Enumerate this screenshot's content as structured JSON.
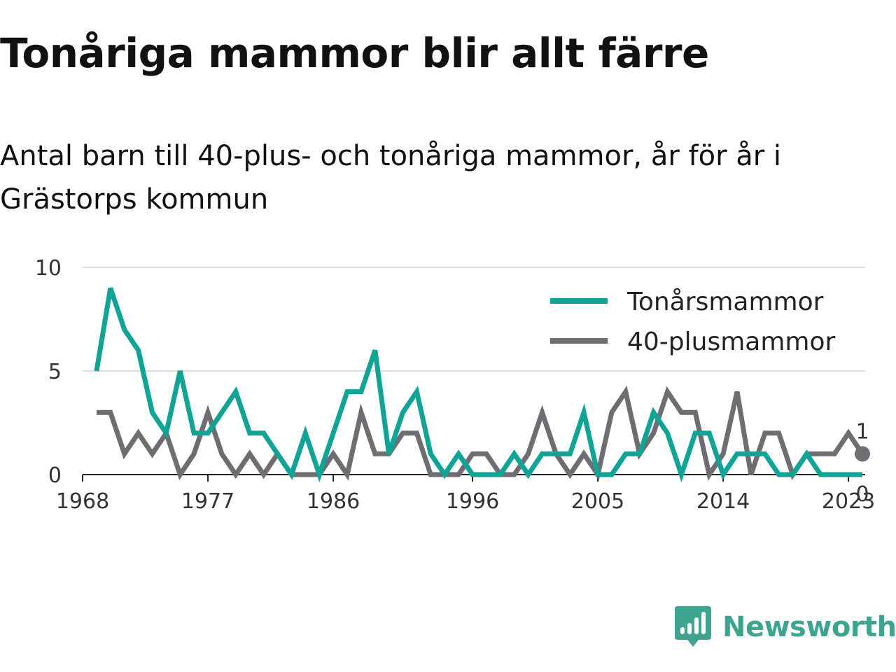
{
  "title": "Tonåriga mammor blir allt färre",
  "subtitle": "Antal barn till 40-plus- och tonåriga mammor, år för år i Grästorps kommun",
  "brand": {
    "name": "Newsworthy",
    "color": "#3fa48f"
  },
  "chart_data": {
    "type": "line",
    "title": "Tonåriga mammor blir allt färre",
    "subtitle": "Antal barn till 40-plus- och tonåriga mammor, år för år i Grästorps kommun",
    "xlabel": "",
    "ylabel": "",
    "xlim": [
      1968,
      2024
    ],
    "ylim": [
      0,
      10
    ],
    "x_ticks": [
      1968,
      1977,
      1986,
      1996,
      2005,
      2014,
      2023
    ],
    "y_ticks": [
      0,
      5,
      10
    ],
    "grid": "horizontal",
    "legend_position": "top-right",
    "x": [
      1969,
      1970,
      1971,
      1972,
      1973,
      1974,
      1975,
      1976,
      1977,
      1978,
      1979,
      1980,
      1981,
      1982,
      1983,
      1984,
      1985,
      1986,
      1987,
      1988,
      1989,
      1990,
      1991,
      1992,
      1993,
      1994,
      1995,
      1996,
      1997,
      1998,
      1999,
      2000,
      2001,
      2002,
      2003,
      2004,
      2005,
      2006,
      2007,
      2008,
      2009,
      2010,
      2011,
      2012,
      2013,
      2014,
      2015,
      2016,
      2017,
      2018,
      2019,
      2020,
      2021,
      2022,
      2023,
      2024
    ],
    "series": [
      {
        "name": "Tonårsmammor",
        "color": "#10a497",
        "values": [
          5,
          9,
          7,
          6,
          3,
          2,
          5,
          2,
          2,
          3,
          4,
          2,
          2,
          1,
          0,
          2,
          0,
          2,
          4,
          4,
          6,
          1,
          3,
          4,
          1,
          0,
          1,
          0,
          0,
          0,
          1,
          0,
          1,
          1,
          1,
          3,
          0,
          0,
          1,
          1,
          3,
          2,
          0,
          2,
          2,
          0,
          1,
          1,
          1,
          0,
          0,
          1,
          0,
          0,
          0,
          0
        ]
      },
      {
        "name": "40-plusmammor",
        "color": "#6e6d72",
        "values": [
          3,
          3,
          1,
          2,
          1,
          2,
          0,
          1,
          3,
          1,
          0,
          1,
          0,
          1,
          0,
          0,
          0,
          1,
          0,
          3,
          1,
          1,
          2,
          2,
          0,
          0,
          0,
          1,
          1,
          0,
          0,
          1,
          3,
          1,
          0,
          1,
          0,
          3,
          4,
          1,
          2,
          4,
          3,
          3,
          0,
          1,
          4,
          0,
          2,
          2,
          0,
          1,
          1,
          1,
          2,
          1
        ]
      }
    ],
    "end_labels": [
      {
        "series": "40-plusmammor",
        "text": "1"
      },
      {
        "series": "Tonårsmammor",
        "text": "0"
      }
    ]
  }
}
